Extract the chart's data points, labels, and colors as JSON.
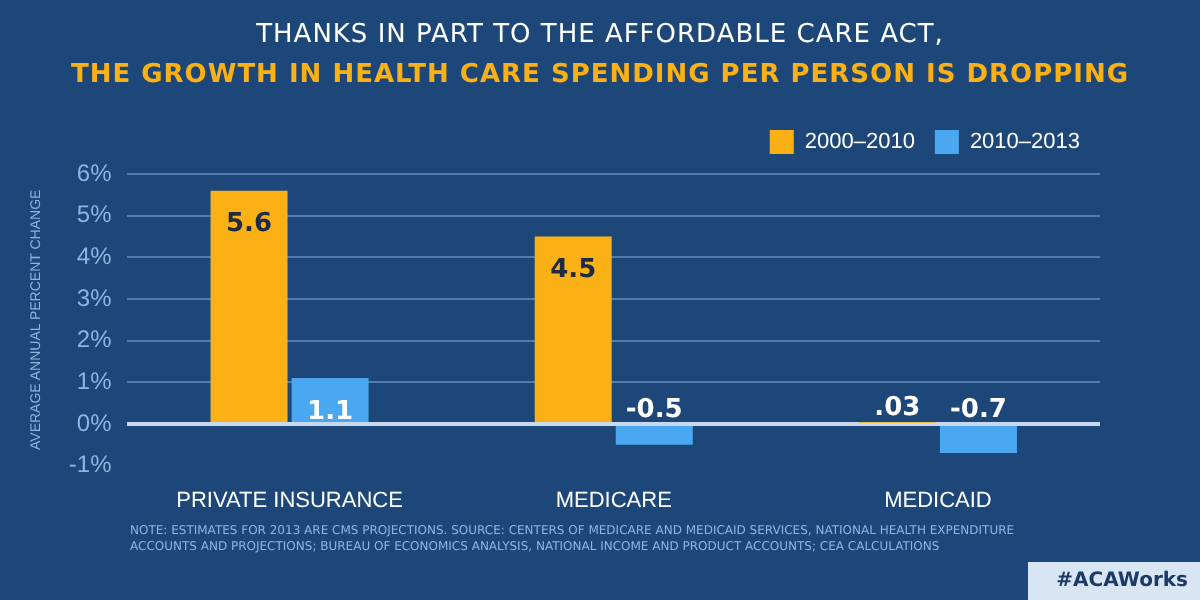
{
  "chart_data": {
    "type": "bar",
    "title": "THANKS IN PART TO THE AFFORDABLE CARE ACT,",
    "subtitle": "THE GROWTH IN HEALTH CARE SPENDING PER PERSON IS DROPPING",
    "ylabel": "AVERAGE ANNUAL PERCENT CHANGE",
    "categories": [
      "PRIVATE INSURANCE",
      "MEDICARE",
      "MEDICAID"
    ],
    "series": [
      {
        "name": "2000–2010",
        "color": "#fbb116",
        "values": [
          5.6,
          4.5,
          0.03
        ],
        "value_labels": [
          "5.6",
          "4.5",
          ".03"
        ]
      },
      {
        "name": "2010–2013",
        "color": "#4aa8f0",
        "values": [
          1.1,
          -0.5,
          -0.7
        ],
        "value_labels": [
          "1.1",
          "-0.5",
          "-0.7"
        ]
      }
    ],
    "ylim": [
      -1,
      6
    ],
    "yticks": [
      {
        "value": -1,
        "label": "-1%"
      },
      {
        "value": 0,
        "label": "0%"
      },
      {
        "value": 1,
        "label": "1%"
      },
      {
        "value": 2,
        "label": "2%"
      },
      {
        "value": 3,
        "label": "3%"
      },
      {
        "value": 4,
        "label": "4%"
      },
      {
        "value": 5,
        "label": "5%"
      },
      {
        "value": 6,
        "label": "6%"
      }
    ],
    "grid": "y",
    "legend": "top right",
    "annotations": [
      "NOTE: ESTIMATES FOR 2013 ARE CMS PROJECTIONS. SOURCE: CENTERS OF MEDICARE AND MEDICAID SERVICES, NATIONAL HEALTH EXPENDITURE ACCOUNTS AND PROJECTIONS; BUREAU OF ECONOMICS ANALYSIS, NATIONAL INCOME AND PRODUCT ACCOUNTS; CEA CALCULATIONS",
      "#ACAWorks"
    ]
  }
}
